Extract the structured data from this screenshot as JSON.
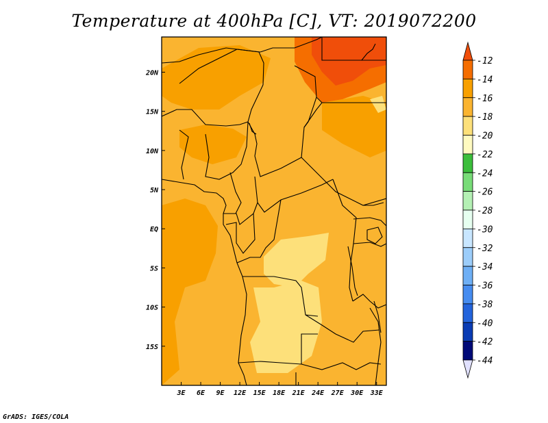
{
  "title": "Temperature at 400hPa [C], VT: 2019072200",
  "credit": "GrADS: IGES/COLA",
  "map": {
    "lon_range": [
      0,
      34.5
    ],
    "lat_range": [
      -20,
      24.5
    ],
    "lon_ticks": [
      {
        "value": 3,
        "label": "3E"
      },
      {
        "value": 6,
        "label": "6E"
      },
      {
        "value": 9,
        "label": "9E"
      },
      {
        "value": 12,
        "label": "12E"
      },
      {
        "value": 15,
        "label": "15E"
      },
      {
        "value": 18,
        "label": "18E"
      },
      {
        "value": 21,
        "label": "21E"
      },
      {
        "value": 24,
        "label": "24E"
      },
      {
        "value": 27,
        "label": "27E"
      },
      {
        "value": 30,
        "label": "30E"
      },
      {
        "value": 33,
        "label": "33E"
      }
    ],
    "lat_ticks": [
      {
        "value": 20,
        "label": "20N"
      },
      {
        "value": 15,
        "label": "15N"
      },
      {
        "value": 10,
        "label": "10N"
      },
      {
        "value": 5,
        "label": "5N"
      },
      {
        "value": 0,
        "label": "EQ"
      },
      {
        "value": -5,
        "label": "5S"
      },
      {
        "value": -10,
        "label": "10S"
      },
      {
        "value": -15,
        "label": "15S"
      }
    ]
  },
  "colorbar": {
    "labels": [
      "-12",
      "-14",
      "-16",
      "-18",
      "-20",
      "-22",
      "-24",
      "-26",
      "-28",
      "-30",
      "-32",
      "-34",
      "-36",
      "-38",
      "-40",
      "-42",
      "-44"
    ],
    "colors": [
      "#f04e0a",
      "#f56e00",
      "#f8a000",
      "#fab430",
      "#fde07a",
      "#fffac0",
      "#3cbe3c",
      "#78dc78",
      "#b4f0b4",
      "#e6fff0",
      "#c8e6ff",
      "#9ccdfa",
      "#6eaff5",
      "#468cf0",
      "#2364dc",
      "#0a3cb4",
      "#000a78",
      "#e1e1ff"
    ],
    "upper_arrow_color": "#f04e0a",
    "lower_arrow_color": "#e1e1ff"
  },
  "field_colors": {
    "base": "#fab430",
    "darker": "#f8a000",
    "warmest": "#f56e00",
    "hottest": "#f04e0a",
    "cool": "#fde07a",
    "coolest": "#fffac0"
  }
}
